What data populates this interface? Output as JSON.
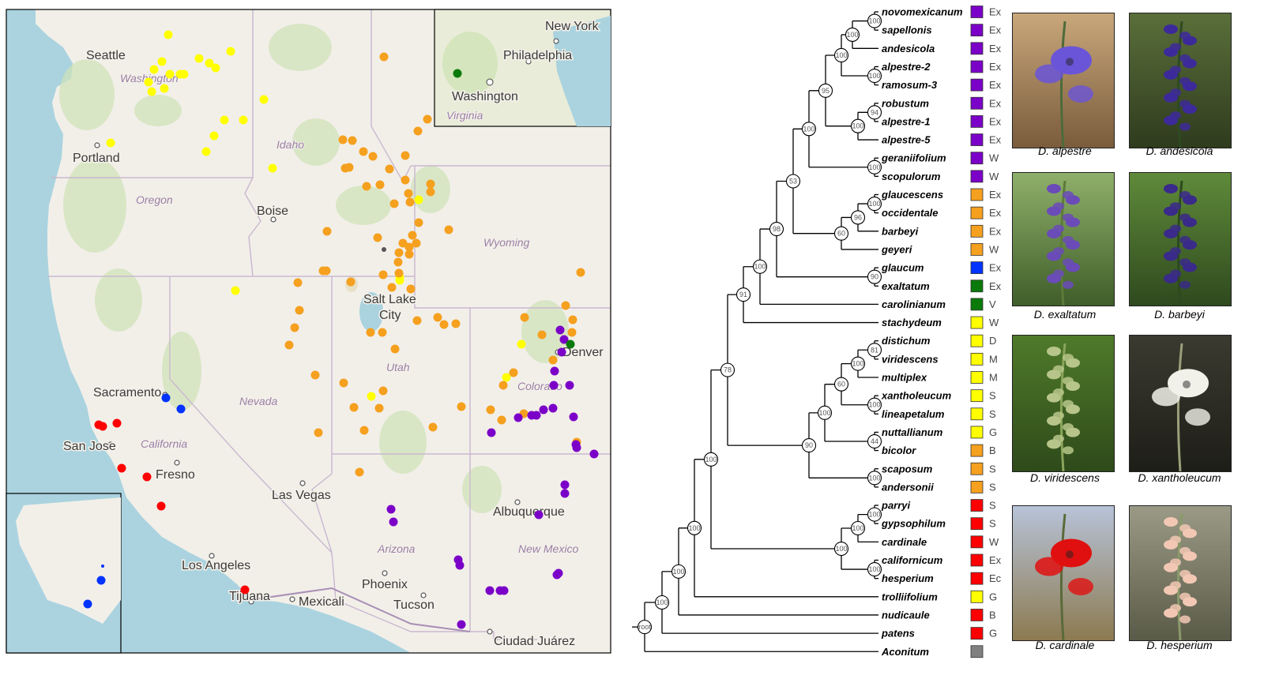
{
  "map": {
    "cities": [
      {
        "name": "Seattle"
      },
      {
        "name": "Portland"
      },
      {
        "name": "Boise"
      },
      {
        "name": "Salt Lake"
      },
      {
        "name": "City"
      },
      {
        "name": "Sacramento"
      },
      {
        "name": "San Jose"
      },
      {
        "name": "Fresno"
      },
      {
        "name": "Las Vegas"
      },
      {
        "name": "Los Angeles"
      },
      {
        "name": "Tijuana"
      },
      {
        "name": "Mexicali"
      },
      {
        "name": "Phoenix"
      },
      {
        "name": "Tucson"
      },
      {
        "name": "Albuquerque"
      },
      {
        "name": "Ciudad Juárez"
      },
      {
        "name": "Denver"
      }
    ],
    "states": [
      {
        "name": "Washington"
      },
      {
        "name": "Oregon"
      },
      {
        "name": "Idaho"
      },
      {
        "name": "Wyoming"
      },
      {
        "name": "Nevada"
      },
      {
        "name": "Utah"
      },
      {
        "name": "California"
      },
      {
        "name": "Colorado"
      },
      {
        "name": "Arizona"
      },
      {
        "name": "New Mexico"
      }
    ],
    "inset_east": {
      "cities": [
        "New York",
        "Philadelphia",
        "Washington"
      ],
      "states": [
        "Virginia"
      ]
    },
    "colors": {
      "purple": "#7b00c8",
      "orange": "#f5a01e",
      "yellow": "#ffff00",
      "blue": "#0033ff",
      "green": "#0a7a0a",
      "red": "#ff0000",
      "gray": "#808080"
    }
  },
  "tree": {
    "taxa": [
      {
        "name": "novomexicanum",
        "color": "#7b00c8",
        "code": "Ex"
      },
      {
        "name": "sapellonis",
        "color": "#7b00c8",
        "code": "Ex"
      },
      {
        "name": "andesicola",
        "color": "#7b00c8",
        "code": "Ex"
      },
      {
        "name": "alpestre-2",
        "color": "#7b00c8",
        "code": "Ex"
      },
      {
        "name": "ramosum-3",
        "color": "#7b00c8",
        "code": "Ex"
      },
      {
        "name": "robustum",
        "color": "#7b00c8",
        "code": "Ex"
      },
      {
        "name": "alpestre-1",
        "color": "#7b00c8",
        "code": "Ex"
      },
      {
        "name": "alpestre-5",
        "color": "#7b00c8",
        "code": "Ex"
      },
      {
        "name": "geraniifolium",
        "color": "#7b00c8",
        "code": "W"
      },
      {
        "name": "scopulorum",
        "color": "#7b00c8",
        "code": "W"
      },
      {
        "name": "glaucescens",
        "color": "#f5a01e",
        "code": "Ex"
      },
      {
        "name": "occidentale",
        "color": "#f5a01e",
        "code": "Ex"
      },
      {
        "name": "barbeyi",
        "color": "#f5a01e",
        "code": "Ex"
      },
      {
        "name": "geyeri",
        "color": "#f5a01e",
        "code": "W"
      },
      {
        "name": "glaucum",
        "color": "#0033ff",
        "code": "Ex"
      },
      {
        "name": "exaltatum",
        "color": "#0a7a0a",
        "code": "Ex"
      },
      {
        "name": "carolinianum",
        "color": "#0a7a0a",
        "code": "V"
      },
      {
        "name": "stachydeum",
        "color": "#ffff00",
        "code": "W"
      },
      {
        "name": "distichum",
        "color": "#ffff00",
        "code": "D"
      },
      {
        "name": "viridescens",
        "color": "#ffff00",
        "code": "M"
      },
      {
        "name": "multiplex",
        "color": "#ffff00",
        "code": "M"
      },
      {
        "name": "xantholeucum",
        "color": "#ffff00",
        "code": "S"
      },
      {
        "name": "lineapetalum",
        "color": "#ffff00",
        "code": "S"
      },
      {
        "name": "nuttallianum",
        "color": "#ffff00",
        "code": "G"
      },
      {
        "name": "bicolor",
        "color": "#f5a01e",
        "code": "B"
      },
      {
        "name": "scaposum",
        "color": "#f5a01e",
        "code": "S"
      },
      {
        "name": "andersonii",
        "color": "#f5a01e",
        "code": "S"
      },
      {
        "name": "parryi",
        "color": "#ff0000",
        "code": "S"
      },
      {
        "name": "gypsophilum",
        "color": "#ff0000",
        "code": "S"
      },
      {
        "name": "cardinale",
        "color": "#ff0000",
        "code": "W"
      },
      {
        "name": "californicum",
        "color": "#ff0000",
        "code": "Ex"
      },
      {
        "name": "hesperium",
        "color": "#ff0000",
        "code": "Ec"
      },
      {
        "name": "trolliifolium",
        "color": "#ffff00",
        "code": "G"
      },
      {
        "name": "nudicaule",
        "color": "#ff0000",
        "code": "B"
      },
      {
        "name": "patens",
        "color": "#ff0000",
        "code": "G"
      },
      {
        "name": "Aconitum",
        "color": "#808080",
        "code": ""
      }
    ],
    "bootstrap": [
      "100",
      "100",
      "100",
      "100",
      "94",
      "100",
      "95",
      "100",
      "100",
      "53",
      "100",
      "96",
      "60",
      "98",
      "90",
      "100",
      "91",
      "81",
      "100",
      "60",
      "100",
      "100",
      "44",
      "90",
      "100",
      "78",
      "100",
      "100",
      "100",
      "100",
      "100",
      "100",
      "100",
      "100",
      "root"
    ]
  },
  "photos": [
    {
      "caption": "D. alpestre",
      "theme": "purple-rocks"
    },
    {
      "caption": "D. andesicola",
      "theme": "purple-spike"
    },
    {
      "caption": "D. exaltatum",
      "theme": "purple-leaves"
    },
    {
      "caption": "D. barbeyi",
      "theme": "purple-meadow"
    },
    {
      "caption": "D. viridescens",
      "theme": "green-spike"
    },
    {
      "caption": "D. xantholeucum",
      "theme": "white-flower"
    },
    {
      "caption": "D. cardinale",
      "theme": "red-flower"
    },
    {
      "caption": "D. hesperium",
      "theme": "pink-spike"
    }
  ]
}
